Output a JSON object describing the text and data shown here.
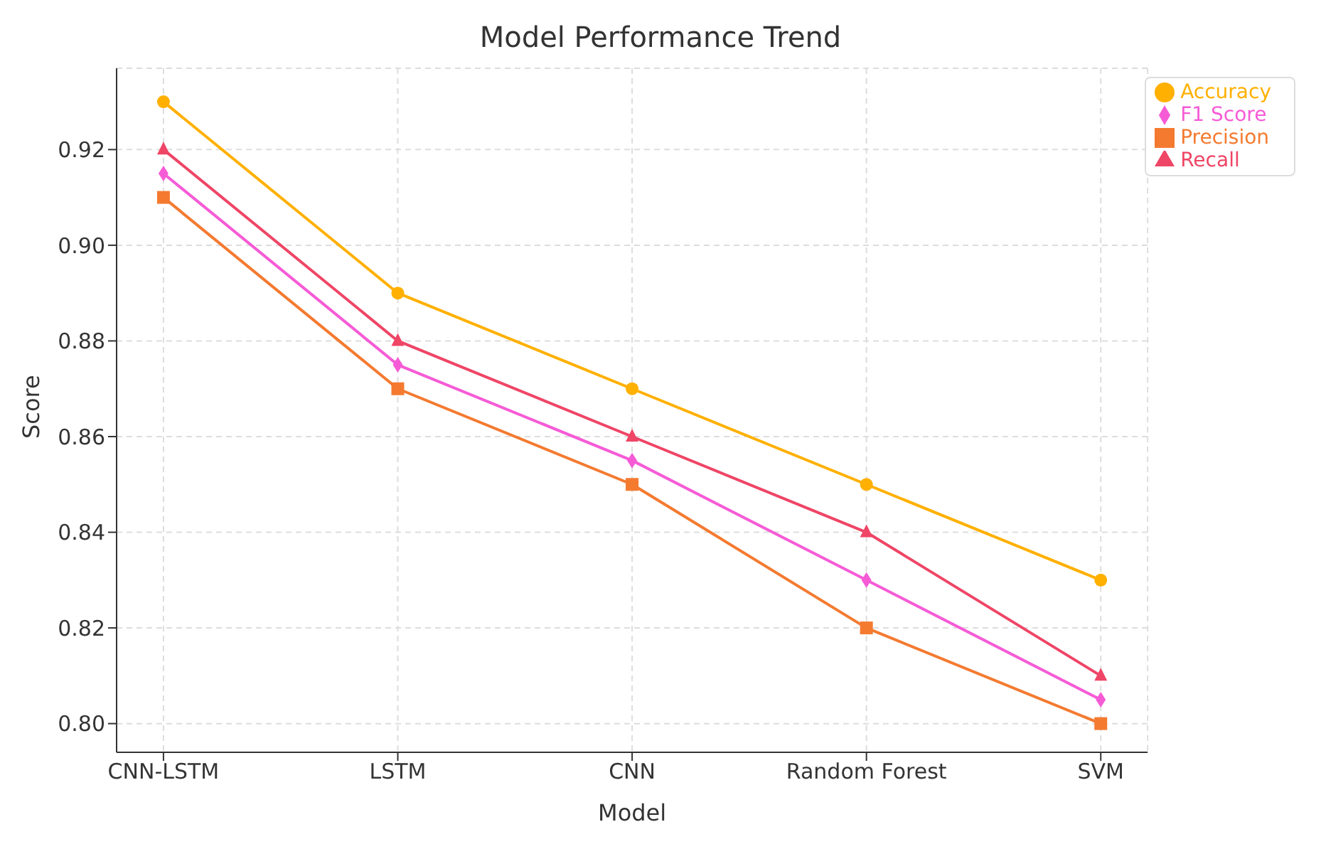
{
  "chart_data": {
    "type": "line",
    "title": "Model Performance Trend",
    "xlabel": "Model",
    "ylabel": "Score",
    "categories": [
      "CNN-LSTM",
      "LSTM",
      "CNN",
      "Random Forest",
      "SVM"
    ],
    "series": [
      {
        "name": "Accuracy",
        "color": "#ffb000",
        "marker": "circle",
        "values": [
          0.93,
          0.89,
          0.87,
          0.85,
          0.83
        ]
      },
      {
        "name": "Precision",
        "color": "#f47a30",
        "marker": "square",
        "values": [
          0.91,
          0.87,
          0.85,
          0.82,
          0.8
        ]
      },
      {
        "name": "Recall",
        "color": "#ef4566",
        "marker": "triangle",
        "values": [
          0.92,
          0.88,
          0.86,
          0.84,
          0.81
        ]
      },
      {
        "name": "F1 Score",
        "color": "#f65bd6",
        "marker": "diamond",
        "values": [
          0.915,
          0.875,
          0.855,
          0.83,
          0.805
        ]
      }
    ],
    "ylim": [
      0.794,
      0.937
    ],
    "yticks": [
      {
        "value": 0.8,
        "label": "0.80"
      },
      {
        "value": 0.82,
        "label": "0.82"
      },
      {
        "value": 0.84,
        "label": "0.84"
      },
      {
        "value": 0.86,
        "label": "0.86"
      },
      {
        "value": 0.88,
        "label": "0.88"
      },
      {
        "value": 0.9,
        "label": "0.90"
      },
      {
        "value": 0.92,
        "label": "0.92"
      }
    ],
    "grid": true,
    "legend": "top right",
    "line_style": "solid"
  }
}
